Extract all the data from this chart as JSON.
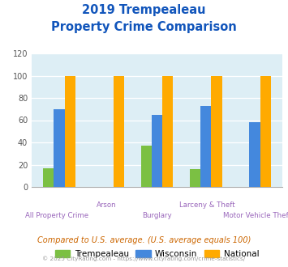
{
  "title_line1": "2019 Trempealeau",
  "title_line2": "Property Crime Comparison",
  "categories": [
    "All Property Crime",
    "Arson",
    "Burglary",
    "Larceny & Theft",
    "Motor Vehicle Theft"
  ],
  "trempealeau": [
    17,
    0,
    37,
    16,
    0
  ],
  "wisconsin": [
    70,
    0,
    65,
    73,
    58
  ],
  "national": [
    100,
    100,
    100,
    100,
    100
  ],
  "bar_colors": {
    "trempealeau": "#7bc043",
    "wisconsin": "#4488dd",
    "national": "#ffaa00"
  },
  "ylim": [
    0,
    120
  ],
  "yticks": [
    0,
    20,
    40,
    60,
    80,
    100,
    120
  ],
  "title_color": "#1155bb",
  "bg_color": "#ddeef5",
  "legend_labels": [
    "Trempealeau",
    "Wisconsin",
    "National"
  ],
  "footnote1": "Compared to U.S. average. (U.S. average equals 100)",
  "footnote2": "© 2025 CityRating.com - https://www.cityrating.com/crime-statistics/",
  "footnote1_color": "#cc6600",
  "footnote2_color": "#999999",
  "xticklabel_color": "#9966bb",
  "bar_width": 0.22
}
